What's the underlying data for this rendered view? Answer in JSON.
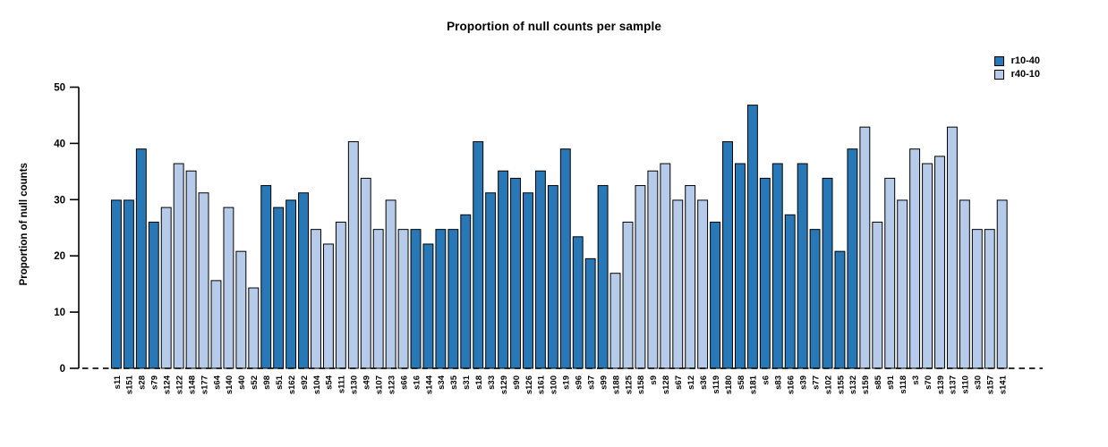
{
  "chart_data": {
    "type": "bar",
    "title": "Proportion of null counts per sample",
    "xlabel": "",
    "ylabel": "Proportion of null counts",
    "ylim": [
      0,
      50
    ],
    "yticks": [
      0,
      10,
      20,
      30,
      40,
      50
    ],
    "grid": false,
    "zero_line_style": "dashed",
    "legend": {
      "position": "top-right",
      "entries": [
        {
          "name": "r10-40",
          "color": "#2878b8"
        },
        {
          "name": "r40-10",
          "color": "#b5cbe9"
        }
      ]
    },
    "bars": [
      {
        "label": "s11",
        "value": 29.9,
        "series": "r10-40"
      },
      {
        "label": "s151",
        "value": 29.9,
        "series": "r10-40"
      },
      {
        "label": "s28",
        "value": 39.0,
        "series": "r10-40"
      },
      {
        "label": "s79",
        "value": 26.0,
        "series": "r10-40"
      },
      {
        "label": "s124",
        "value": 28.6,
        "series": "r40-10"
      },
      {
        "label": "s122",
        "value": 36.4,
        "series": "r40-10"
      },
      {
        "label": "s148",
        "value": 35.1,
        "series": "r40-10"
      },
      {
        "label": "s177",
        "value": 31.2,
        "series": "r40-10"
      },
      {
        "label": "s64",
        "value": 15.6,
        "series": "r40-10"
      },
      {
        "label": "s140",
        "value": 28.6,
        "series": "r40-10"
      },
      {
        "label": "s40",
        "value": 20.8,
        "series": "r40-10"
      },
      {
        "label": "s52",
        "value": 14.3,
        "series": "r40-10"
      },
      {
        "label": "s98",
        "value": 32.5,
        "series": "r10-40"
      },
      {
        "label": "s51",
        "value": 28.6,
        "series": "r10-40"
      },
      {
        "label": "s162",
        "value": 29.9,
        "series": "r10-40"
      },
      {
        "label": "s92",
        "value": 31.2,
        "series": "r10-40"
      },
      {
        "label": "s104",
        "value": 24.7,
        "series": "r40-10"
      },
      {
        "label": "s54",
        "value": 22.1,
        "series": "r40-10"
      },
      {
        "label": "s111",
        "value": 26.0,
        "series": "r40-10"
      },
      {
        "label": "s130",
        "value": 40.3,
        "series": "r40-10"
      },
      {
        "label": "s49",
        "value": 33.8,
        "series": "r40-10"
      },
      {
        "label": "s107",
        "value": 24.7,
        "series": "r40-10"
      },
      {
        "label": "s123",
        "value": 29.9,
        "series": "r40-10"
      },
      {
        "label": "s66",
        "value": 24.7,
        "series": "r40-10"
      },
      {
        "label": "s16",
        "value": 24.7,
        "series": "r10-40"
      },
      {
        "label": "s144",
        "value": 22.1,
        "series": "r10-40"
      },
      {
        "label": "s34",
        "value": 24.7,
        "series": "r10-40"
      },
      {
        "label": "s35",
        "value": 24.7,
        "series": "r10-40"
      },
      {
        "label": "s31",
        "value": 27.3,
        "series": "r10-40"
      },
      {
        "label": "s18",
        "value": 40.3,
        "series": "r10-40"
      },
      {
        "label": "s33",
        "value": 31.2,
        "series": "r10-40"
      },
      {
        "label": "s129",
        "value": 35.1,
        "series": "r10-40"
      },
      {
        "label": "s90",
        "value": 33.8,
        "series": "r10-40"
      },
      {
        "label": "s126",
        "value": 31.2,
        "series": "r10-40"
      },
      {
        "label": "s161",
        "value": 35.1,
        "series": "r10-40"
      },
      {
        "label": "s100",
        "value": 32.5,
        "series": "r10-40"
      },
      {
        "label": "s19",
        "value": 39.0,
        "series": "r10-40"
      },
      {
        "label": "s96",
        "value": 23.4,
        "series": "r10-40"
      },
      {
        "label": "s37",
        "value": 19.5,
        "series": "r10-40"
      },
      {
        "label": "s99",
        "value": 32.5,
        "series": "r10-40"
      },
      {
        "label": "s188",
        "value": 16.9,
        "series": "r40-10"
      },
      {
        "label": "s125",
        "value": 26.0,
        "series": "r40-10"
      },
      {
        "label": "s158",
        "value": 32.5,
        "series": "r40-10"
      },
      {
        "label": "s9",
        "value": 35.1,
        "series": "r40-10"
      },
      {
        "label": "s128",
        "value": 36.4,
        "series": "r40-10"
      },
      {
        "label": "s67",
        "value": 29.9,
        "series": "r40-10"
      },
      {
        "label": "s12",
        "value": 32.5,
        "series": "r40-10"
      },
      {
        "label": "s36",
        "value": 29.9,
        "series": "r40-10"
      },
      {
        "label": "s119",
        "value": 26.0,
        "series": "r10-40"
      },
      {
        "label": "s180",
        "value": 40.3,
        "series": "r10-40"
      },
      {
        "label": "s58",
        "value": 36.4,
        "series": "r10-40"
      },
      {
        "label": "s181",
        "value": 46.8,
        "series": "r10-40"
      },
      {
        "label": "s6",
        "value": 33.8,
        "series": "r10-40"
      },
      {
        "label": "s83",
        "value": 36.4,
        "series": "r10-40"
      },
      {
        "label": "s166",
        "value": 27.3,
        "series": "r10-40"
      },
      {
        "label": "s39",
        "value": 36.4,
        "series": "r10-40"
      },
      {
        "label": "s77",
        "value": 24.7,
        "series": "r10-40"
      },
      {
        "label": "s102",
        "value": 33.8,
        "series": "r10-40"
      },
      {
        "label": "s155",
        "value": 20.8,
        "series": "r10-40"
      },
      {
        "label": "s132",
        "value": 39.0,
        "series": "r10-40"
      },
      {
        "label": "s159",
        "value": 42.9,
        "series": "r40-10"
      },
      {
        "label": "s85",
        "value": 26.0,
        "series": "r40-10"
      },
      {
        "label": "s91",
        "value": 33.8,
        "series": "r40-10"
      },
      {
        "label": "s118",
        "value": 29.9,
        "series": "r40-10"
      },
      {
        "label": "s3",
        "value": 39.0,
        "series": "r40-10"
      },
      {
        "label": "s70",
        "value": 36.4,
        "series": "r40-10"
      },
      {
        "label": "s139",
        "value": 37.7,
        "series": "r40-10"
      },
      {
        "label": "s137",
        "value": 42.9,
        "series": "r40-10"
      },
      {
        "label": "s110",
        "value": 29.9,
        "series": "r40-10"
      },
      {
        "label": "s30",
        "value": 24.7,
        "series": "r40-10"
      },
      {
        "label": "s157",
        "value": 24.7,
        "series": "r40-10"
      },
      {
        "label": "s141",
        "value": 29.9,
        "series": "r40-10"
      }
    ]
  }
}
